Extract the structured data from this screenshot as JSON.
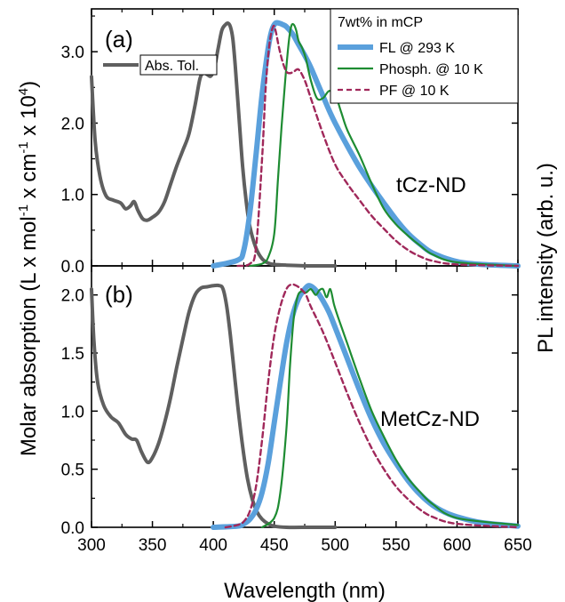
{
  "chart_data": {
    "type": "line",
    "xlabel": "Wavelength (nm)",
    "ylabel_left_prefix": "Molar absorption (L x mol",
    "ylabel_left_sup1": "-1",
    "ylabel_left_mid1": " x cm",
    "ylabel_left_sup2": "-1",
    "ylabel_left_mid2": " x 10",
    "ylabel_left_sup3": "4",
    "ylabel_left_suffix": ")",
    "ylabel_right": "PL intensity (arb. u.)",
    "xlim": [
      300,
      650
    ],
    "xticks": [
      "300",
      "350",
      "400",
      "450",
      "500",
      "550",
      "600",
      "650"
    ],
    "colors": {
      "abs": "#5f5f5f",
      "fl": "#5aa0dc",
      "phosph": "#1e8c32",
      "pf": "#a0285a"
    },
    "panels": [
      {
        "label": "(a)",
        "sample": "tCz-ND",
        "ylim": [
          0,
          3.6
        ],
        "yticks": [
          "0.0",
          "1.0",
          "2.0",
          "3.0"
        ],
        "legend": {
          "header": "7wt% in mCP",
          "entries": [
            {
              "key": "fl",
              "label": "FL @ 293 K"
            },
            {
              "key": "phosph",
              "label": "Phosph. @ 10 K"
            },
            {
              "key": "pf",
              "label": "PF @ 10 K"
            }
          ],
          "abs_label": "Abs. Tol."
        },
        "series": {
          "abs": {
            "x": [
              300,
              303,
              307,
              312,
              318,
              324,
              328,
              332,
              335,
              338,
              342,
              346,
              350,
              355,
              360,
              365,
              370,
              375,
              380,
              385,
              389,
              392,
              395,
              398,
              401,
              404,
              407,
              410,
              412,
              414,
              416,
              418,
              421,
              424,
              427,
              430,
              435,
              440,
              445,
              450,
              460,
              480,
              500
            ],
            "y": [
              2.65,
              1.75,
              1.25,
              0.98,
              0.92,
              0.88,
              0.8,
              0.84,
              0.9,
              0.78,
              0.66,
              0.64,
              0.68,
              0.75,
              0.9,
              1.15,
              1.4,
              1.62,
              1.85,
              2.25,
              2.62,
              2.7,
              2.68,
              2.66,
              2.78,
              3.05,
              3.3,
              3.38,
              3.4,
              3.35,
              3.18,
              2.8,
              2.1,
              1.4,
              0.9,
              0.55,
              0.25,
              0.1,
              0.04,
              0.02,
              0.01,
              0.0,
              0.0
            ]
          },
          "fl": {
            "x": [
              400,
              420,
              425,
              430,
              435,
              440,
              445,
              448,
              451,
              454,
              457,
              460,
              465,
              470,
              475,
              480,
              485,
              490,
              495,
              500,
              510,
              520,
              530,
              540,
              550,
              560,
              570,
              580,
              600,
              620,
              650
            ],
            "y": [
              0.0,
              0.08,
              0.22,
              0.75,
              1.55,
              2.4,
              3.05,
              3.3,
              3.4,
              3.4,
              3.38,
              3.35,
              3.25,
              3.1,
              2.95,
              2.78,
              2.58,
              2.38,
              2.18,
              2.0,
              1.68,
              1.38,
              1.12,
              0.88,
              0.65,
              0.45,
              0.3,
              0.18,
              0.06,
              0.02,
              0.0
            ]
          },
          "phosph": {
            "x": [
              430,
              440,
              445,
              450,
              453,
              456,
              459,
              462,
              464,
              466,
              468,
              470,
              473,
              476,
              480,
              485,
              490,
              495,
              500,
              505,
              510,
              520,
              530,
              540,
              550,
              560,
              570,
              580,
              600,
              650
            ],
            "y": [
              0.0,
              0.03,
              0.12,
              0.45,
              1.2,
              1.95,
              2.6,
              3.15,
              3.36,
              3.38,
              3.3,
              3.15,
              3.05,
              2.9,
              2.6,
              2.35,
              2.35,
              2.45,
              2.4,
              2.15,
              1.9,
              1.55,
              1.15,
              0.8,
              0.58,
              0.42,
              0.28,
              0.16,
              0.05,
              0.0
            ]
          },
          "pf": {
            "x": [
              420,
              430,
              435,
              440,
              443,
              446,
              449,
              451,
              454,
              457,
              460,
              463,
              466,
              470,
              475,
              480,
              490,
              500,
              510,
              520,
              530,
              540,
              550,
              560,
              570,
              580,
              600,
              650
            ],
            "y": [
              0.0,
              0.03,
              0.25,
              1.5,
              2.5,
              3.1,
              3.35,
              3.3,
              3.05,
              2.85,
              2.72,
              2.7,
              2.72,
              2.75,
              2.6,
              2.35,
              1.85,
              1.42,
              1.15,
              0.92,
              0.7,
              0.52,
              0.35,
              0.22,
              0.13,
              0.07,
              0.02,
              0.0
            ]
          }
        }
      },
      {
        "label": "(b)",
        "sample": "MetCz-ND",
        "ylim": [
          0,
          2.25
        ],
        "yticks": [
          "0.0",
          "0.5",
          "1.0",
          "1.5",
          "2.0"
        ],
        "series": {
          "abs": {
            "x": [
              300,
              302,
              305,
              310,
              316,
              322,
              328,
              333,
              337,
              341,
              346,
              350,
              355,
              360,
              365,
              370,
              375,
              380,
              385,
              390,
              395,
              400,
              405,
              408,
              411,
              414,
              417,
              420,
              424,
              428,
              432,
              436,
              440,
              445,
              450,
              460,
              480,
              500
            ],
            "y": [
              2.05,
              1.6,
              1.25,
              1.05,
              0.95,
              0.9,
              0.8,
              0.76,
              0.75,
              0.65,
              0.56,
              0.6,
              0.72,
              0.9,
              1.12,
              1.38,
              1.62,
              1.85,
              2.0,
              2.06,
              2.07,
              2.08,
              2.08,
              2.05,
              1.9,
              1.65,
              1.35,
              1.05,
              0.7,
              0.42,
              0.24,
              0.13,
              0.07,
              0.03,
              0.01,
              0.0,
              0.0,
              0.0
            ]
          },
          "fl": {
            "x": [
              400,
              420,
              425,
              430,
              435,
              440,
              445,
              450,
              455,
              460,
              465,
              470,
              475,
              478,
              481,
              485,
              490,
              495,
              500,
              510,
              520,
              530,
              540,
              550,
              560,
              570,
              580,
              590,
              600,
              620,
              650
            ],
            "y": [
              0.0,
              0.01,
              0.03,
              0.07,
              0.15,
              0.3,
              0.55,
              0.9,
              1.25,
              1.58,
              1.82,
              1.97,
              2.05,
              2.08,
              2.07,
              2.03,
              1.95,
              1.85,
              1.72,
              1.45,
              1.18,
              0.93,
              0.72,
              0.55,
              0.4,
              0.28,
              0.19,
              0.13,
              0.09,
              0.04,
              0.01
            ]
          },
          "phosph": {
            "x": [
              440,
              450,
              455,
              460,
              463,
              466,
              469,
              472,
              476,
              480,
              484,
              487,
              490,
              493,
              496,
              499,
              502,
              506,
              510,
              520,
              530,
              540,
              550,
              560,
              570,
              580,
              600,
              650
            ],
            "y": [
              0.0,
              0.08,
              0.3,
              0.85,
              1.4,
              1.8,
              1.98,
              2.03,
              2.02,
              2.05,
              2.0,
              2.04,
              2.05,
              1.98,
              2.05,
              1.92,
              1.82,
              1.7,
              1.58,
              1.28,
              1.0,
              0.78,
              0.58,
              0.42,
              0.3,
              0.2,
              0.08,
              0.02
            ]
          },
          "pf": {
            "x": [
              410,
              420,
              425,
              430,
              435,
              440,
              445,
              450,
              455,
              460,
              464,
              468,
              472,
              476,
              480,
              490,
              500,
              510,
              520,
              530,
              540,
              550,
              560,
              570,
              580,
              600,
              650
            ],
            "y": [
              0.0,
              0.02,
              0.05,
              0.14,
              0.35,
              0.75,
              1.25,
              1.65,
              1.9,
              2.05,
              2.09,
              2.08,
              2.05,
              2.0,
              1.9,
              1.68,
              1.42,
              1.15,
              0.9,
              0.68,
              0.5,
              0.35,
              0.24,
              0.15,
              0.09,
              0.03,
              0.0
            ]
          }
        }
      }
    ]
  }
}
